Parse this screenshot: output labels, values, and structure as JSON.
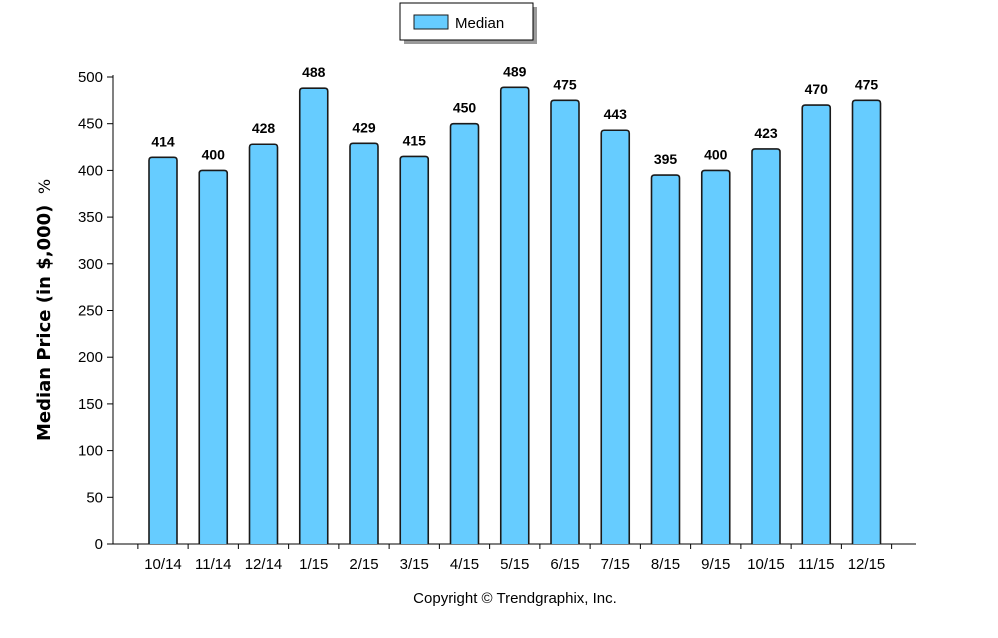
{
  "chart_data": {
    "type": "bar",
    "categories": [
      "10/14",
      "11/14",
      "12/14",
      "1/15",
      "2/15",
      "3/15",
      "4/15",
      "5/15",
      "6/15",
      "7/15",
      "8/15",
      "9/15",
      "10/15",
      "11/15",
      "12/15"
    ],
    "series": [
      {
        "name": "Median",
        "values": [
          414,
          400,
          428,
          488,
          429,
          415,
          450,
          489,
          475,
          443,
          395,
          400,
          423,
          470,
          475
        ],
        "color": "#66ccff"
      }
    ],
    "ylabel": "Median Price (in $,000)",
    "ylabel_suffix": "%",
    "ylim": [
      0,
      500
    ],
    "yticks": [
      0,
      50,
      100,
      150,
      200,
      250,
      300,
      350,
      400,
      450,
      500
    ],
    "legend_position": "top-center",
    "grid": false,
    "data_labels": true
  },
  "footer": {
    "copyright": "Copyright © Trendgraphix, Inc."
  },
  "colors": {
    "bar_fill": "#66ccff",
    "bar_stroke": "#1a1a1a",
    "axis": "#000000"
  }
}
